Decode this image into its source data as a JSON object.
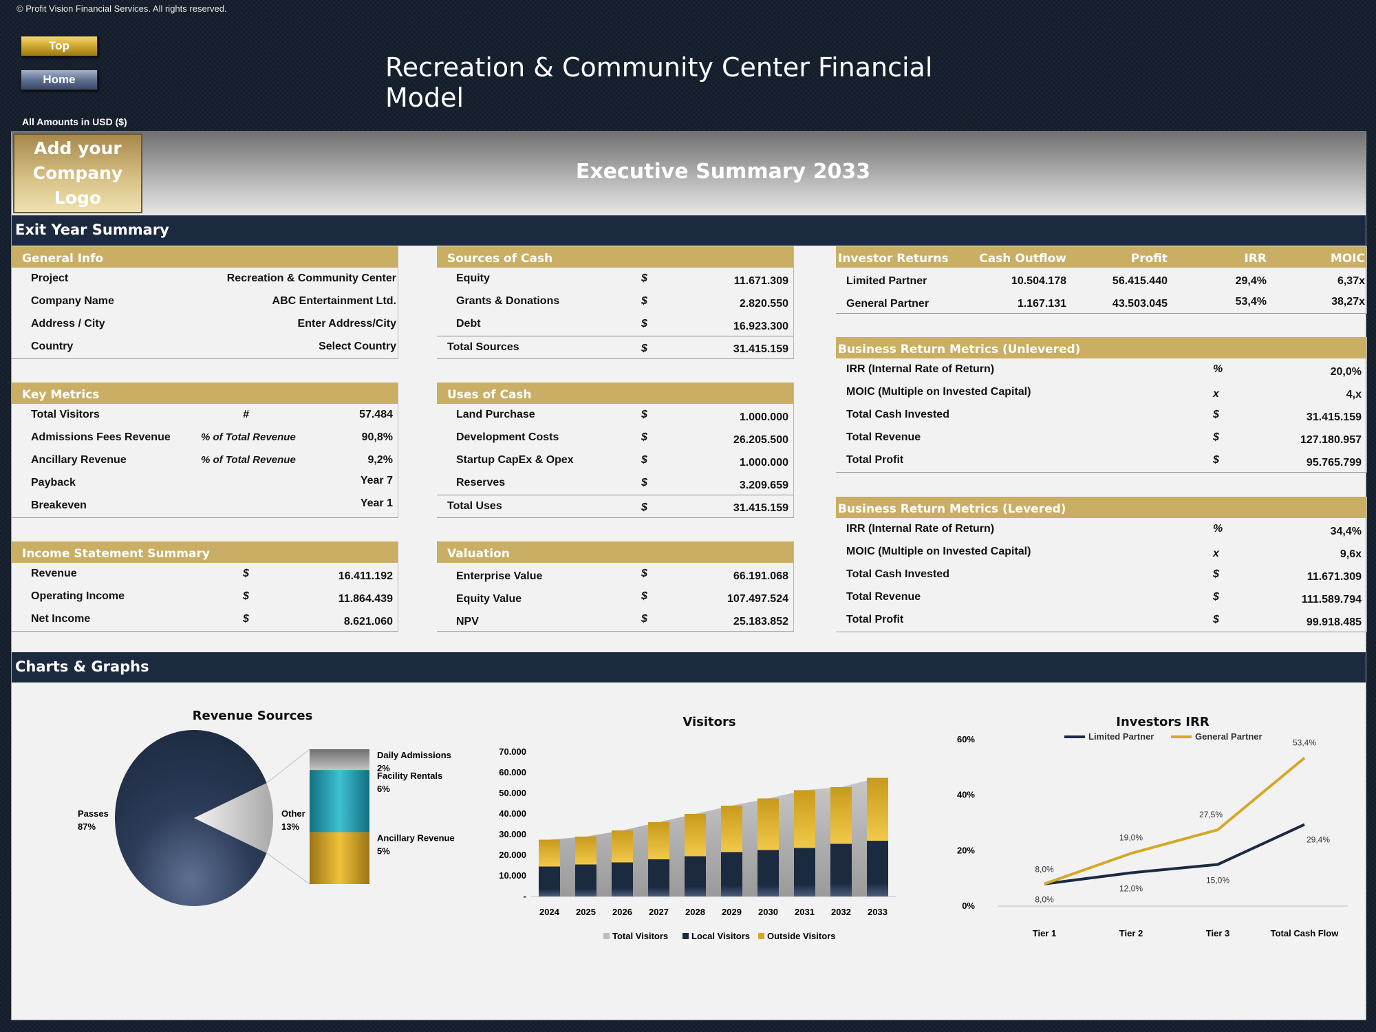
{
  "copyright": "© Profit Vision Financial Services. All rights reserved.",
  "nav": {
    "top": "Top",
    "home": "Home"
  },
  "title": "Recreation & Community Center Financial Model",
  "amounts_note": "All Amounts in  USD ($)",
  "logo_text": "Add your Company Logo",
  "banner_title": "Executive Summary 2033",
  "sections": {
    "exit": "Exit Year Summary",
    "charts": "Charts & Graphs"
  },
  "general_info": {
    "header": "General Info",
    "rows": [
      {
        "label": "Project",
        "value": "Recreation & Community Center"
      },
      {
        "label": "Company Name",
        "value": "ABC Entertainment Ltd."
      },
      {
        "label": "Address / City",
        "value": "Enter Address/City"
      },
      {
        "label": "Country",
        "value": "Select Country"
      }
    ]
  },
  "key_metrics": {
    "header": "Key Metrics",
    "rows": [
      {
        "label": "Total Visitors",
        "unit": "#",
        "value": "57.484"
      },
      {
        "label": "Admissions Fees Revenue",
        "unit": "% of Total Revenue",
        "value": "90,8%"
      },
      {
        "label": "Ancillary Revenue",
        "unit": "% of Total Revenue",
        "value": "9,2%"
      },
      {
        "label": "Payback",
        "unit": "",
        "value": "Year 7"
      },
      {
        "label": "Breakeven",
        "unit": "",
        "value": "Year 1"
      }
    ]
  },
  "income_statement": {
    "header": "Income Statement Summary",
    "rows": [
      {
        "label": "Revenue",
        "unit": "$",
        "value": "16.411.192"
      },
      {
        "label": "Operating Income",
        "unit": "$",
        "value": "11.864.439"
      },
      {
        "label": "Net Income",
        "unit": "$",
        "value": "8.621.060"
      }
    ]
  },
  "sources_of_cash": {
    "header": "Sources of Cash",
    "rows": [
      {
        "label": "Equity",
        "unit": "$",
        "value": "11.671.309"
      },
      {
        "label": "Grants & Donations",
        "unit": "$",
        "value": "2.820.550"
      },
      {
        "label": "Debt",
        "unit": "$",
        "value": "16.923.300"
      }
    ],
    "total": {
      "label": "Total Sources",
      "unit": "$",
      "value": "31.415.159"
    }
  },
  "uses_of_cash": {
    "header": "Uses of Cash",
    "rows": [
      {
        "label": "Land Purchase",
        "unit": "$",
        "value": "1.000.000"
      },
      {
        "label": "Development Costs",
        "unit": "$",
        "value": "26.205.500"
      },
      {
        "label": "Startup CapEx & Opex",
        "unit": "$",
        "value": "1.000.000"
      },
      {
        "label": "Reserves",
        "unit": "$",
        "value": "3.209.659"
      }
    ],
    "total": {
      "label": "Total Uses",
      "unit": "$",
      "value": "31.415.159"
    }
  },
  "valuation": {
    "header": "Valuation",
    "rows": [
      {
        "label": "Enterprise Value",
        "unit": "$",
        "value": "66.191.068"
      },
      {
        "label": "Equity Value",
        "unit": "$",
        "value": "107.497.524"
      },
      {
        "label": "NPV",
        "unit": "$",
        "value": "25.183.852"
      }
    ]
  },
  "investor_returns": {
    "headers": [
      "Investor Returns",
      "Cash Outflow",
      "Profit",
      "IRR",
      "MOIC"
    ],
    "rows": [
      {
        "label": "Limited Partner",
        "cash_outflow": "10.504.178",
        "profit": "56.415.440",
        "irr": "29,4%",
        "moic": "6,37x"
      },
      {
        "label": "General Partner",
        "cash_outflow": "1.167.131",
        "profit": "43.503.045",
        "irr": "53,4%",
        "moic": "38,27x"
      }
    ]
  },
  "unlevered": {
    "header": "Business Return Metrics (Unlevered)",
    "rows": [
      {
        "label": "IRR (Internal Rate of Return)",
        "unit": "%",
        "value": "20,0%"
      },
      {
        "label": "MOIC (Multiple on Invested Capital)",
        "unit": "x",
        "value": "4,x"
      },
      {
        "label": "Total Cash Invested",
        "unit": "$",
        "value": "31.415.159"
      },
      {
        "label": "Total Revenue",
        "unit": "$",
        "value": "127.180.957"
      },
      {
        "label": "Total Profit",
        "unit": "$",
        "value": "95.765.799"
      }
    ]
  },
  "levered": {
    "header": "Business Return Metrics (Levered)",
    "rows": [
      {
        "label": "IRR (Internal Rate of Return)",
        "unit": "%",
        "value": "34,4%"
      },
      {
        "label": "MOIC (Multiple on Invested Capital)",
        "unit": "x",
        "value": "9,6x"
      },
      {
        "label": "Total Cash Invested",
        "unit": "$",
        "value": "11.671.309"
      },
      {
        "label": "Total Revenue",
        "unit": "$",
        "value": "111.589.794"
      },
      {
        "label": "Total Profit",
        "unit": "$",
        "value": "99.918.485"
      }
    ]
  },
  "colors": {
    "navy": "#1c2a40",
    "gold": "#c9ae64",
    "chart_gold": "#d4a82a",
    "teal": "#2aa3b5",
    "grey": "#a9a9a9"
  },
  "chart_data": [
    {
      "type": "pie",
      "title": "Revenue Sources",
      "slices": [
        {
          "label": "Passes",
          "value": 87,
          "display": "87%"
        },
        {
          "label": "Other",
          "value": 13,
          "display": "13%"
        }
      ],
      "breakdown_of": "Other",
      "breakdown": [
        {
          "label": "Daily Admissions",
          "value": 2,
          "display": "2%"
        },
        {
          "label": "Facility Rentals",
          "value": 6,
          "display": "6%"
        },
        {
          "label": "Ancillary Revenue",
          "value": 5,
          "display": "5%"
        }
      ]
    },
    {
      "type": "bar",
      "title": "Visitors",
      "categories": [
        "2024",
        "2025",
        "2026",
        "2027",
        "2028",
        "2029",
        "2030",
        "2031",
        "2032",
        "2033"
      ],
      "series": [
        {
          "name": "Total Visitors",
          "values": [
            27500,
            29000,
            32000,
            36000,
            40000,
            44000,
            47500,
            51500,
            53000,
            57484
          ]
        },
        {
          "name": "Local Visitors",
          "values": [
            14500,
            15500,
            16500,
            18000,
            19500,
            21500,
            22500,
            23500,
            25500,
            27000
          ]
        },
        {
          "name": "Outside Visitors",
          "values": [
            13000,
            13500,
            15500,
            18000,
            20500,
            22500,
            25000,
            28000,
            27500,
            30484
          ]
        }
      ],
      "yticks": [
        "-",
        "10.000",
        "20.000",
        "30.000",
        "40.000",
        "50.000",
        "60.000",
        "70.000"
      ],
      "ylim": [
        0,
        70000
      ],
      "legend": "bottom"
    },
    {
      "type": "line",
      "title": "Investors IRR",
      "categories": [
        "Tier 1",
        "Tier 2",
        "Tier 3",
        "Total Cash Flow"
      ],
      "series": [
        {
          "name": "Limited Partner",
          "values": [
            8.0,
            12.0,
            15.0,
            29.4
          ],
          "labels": [
            "8,0%",
            "12,0%",
            "15,0%",
            "29,4%"
          ]
        },
        {
          "name": "General Partner",
          "values": [
            8.0,
            19.0,
            27.5,
            53.4
          ],
          "labels": [
            "8,0%",
            "19,0%",
            "27,5%",
            "53,4%"
          ]
        }
      ],
      "yticks": [
        "0%",
        "20%",
        "40%",
        "60%"
      ],
      "ylim": [
        0,
        60
      ],
      "legend": "top"
    }
  ]
}
